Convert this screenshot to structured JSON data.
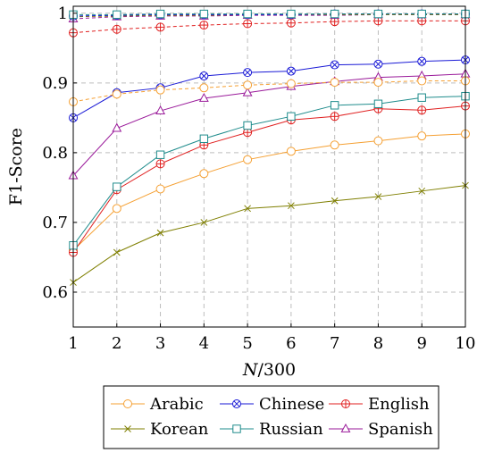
{
  "chart_data": {
    "type": "line",
    "xlabel": "N/300",
    "ylabel": "F1-Score",
    "x": [
      1,
      2,
      3,
      4,
      5,
      6,
      7,
      8,
      9,
      10
    ],
    "xlim": [
      1,
      10
    ],
    "ylim": [
      0.55,
      1.01
    ],
    "xticks": [
      "1",
      "2",
      "3",
      "4",
      "5",
      "6",
      "7",
      "8",
      "9",
      "10"
    ],
    "yticks": [
      0.6,
      0.7,
      0.8,
      0.9,
      1
    ],
    "ytick_labels": [
      "0.6",
      "0.7",
      "0.8",
      "0.9",
      "1"
    ],
    "grid": true,
    "legend_position": "bottom",
    "series": [
      {
        "name": "Arabic",
        "color": "#f5a033",
        "marker": "circle",
        "style": "solid",
        "values": [
          0.66,
          0.72,
          0.748,
          0.77,
          0.79,
          0.802,
          0.811,
          0.817,
          0.824,
          0.827
        ]
      },
      {
        "name": "Chinese",
        "color": "#1a1ad6",
        "marker": "otimes",
        "style": "solid",
        "values": [
          0.85,
          0.886,
          0.893,
          0.91,
          0.915,
          0.917,
          0.926,
          0.927,
          0.931,
          0.933
        ]
      },
      {
        "name": "English",
        "color": "#e02020",
        "marker": "oplus",
        "style": "solid",
        "values": [
          0.657,
          0.747,
          0.784,
          0.811,
          0.829,
          0.847,
          0.852,
          0.863,
          0.861,
          0.867
        ]
      },
      {
        "name": "Korean",
        "color": "#7f7f00",
        "marker": "x",
        "style": "solid",
        "values": [
          0.614,
          0.657,
          0.685,
          0.7,
          0.72,
          0.724,
          0.731,
          0.737,
          0.745,
          0.753
        ]
      },
      {
        "name": "Russian",
        "color": "#1f8c8c",
        "marker": "square",
        "style": "solid",
        "values": [
          0.667,
          0.751,
          0.797,
          0.82,
          0.839,
          0.852,
          0.868,
          0.87,
          0.879,
          0.881
        ]
      },
      {
        "name": "Spanish",
        "color": "#9a1a9a",
        "marker": "triangle",
        "style": "solid",
        "values": [
          0.767,
          0.835,
          0.86,
          0.878,
          0.886,
          0.895,
          0.902,
          0.908,
          0.91,
          0.913
        ]
      },
      {
        "color": "#f5a033",
        "marker": "circle",
        "style": "dashed",
        "values": [
          0.873,
          0.884,
          0.89,
          0.893,
          0.897,
          0.899,
          0.901,
          0.901,
          0.903,
          0.903
        ]
      },
      {
        "color": "#e02020",
        "marker": "oplus",
        "style": "dashed",
        "values": [
          0.972,
          0.977,
          0.98,
          0.983,
          0.985,
          0.986,
          0.988,
          0.989,
          0.989,
          0.989
        ]
      },
      {
        "color": "#9a1a9a",
        "marker": "triangle",
        "style": "dashed",
        "values": [
          0.992,
          0.995,
          0.996,
          0.996,
          0.997,
          0.997,
          0.997,
          0.998,
          0.998,
          0.998
        ]
      },
      {
        "color": "#7f7f00",
        "marker": "x",
        "style": "dashed",
        "values": [
          0.995,
          0.996,
          0.997,
          0.997,
          0.998,
          0.998,
          0.998,
          0.998,
          0.998,
          0.998
        ]
      },
      {
        "color": "#1a1ad6",
        "marker": "otimes",
        "style": "dashed",
        "values": [
          0.996,
          0.997,
          0.998,
          0.998,
          0.998,
          0.998,
          0.999,
          0.999,
          0.999,
          0.999
        ]
      },
      {
        "color": "#1f8c8c",
        "marker": "square",
        "style": "dashed",
        "values": [
          0.998,
          0.998,
          0.999,
          0.999,
          0.999,
          0.999,
          0.999,
          0.999,
          0.999,
          0.999
        ]
      }
    ]
  }
}
